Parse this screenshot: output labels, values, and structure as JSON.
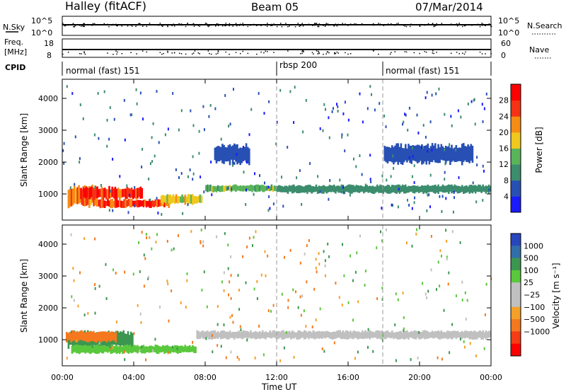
{
  "header": {
    "station": "Halley (fitACF)",
    "beam": "Beam 05",
    "date": "07/Mar/2014"
  },
  "noise_panel": {
    "left_label": "N.Sky",
    "right_label": "N.Search",
    "top_tick": "10^5",
    "bottom_tick": "10^0"
  },
  "freq_panel": {
    "left_label_top": "Freq.",
    "left_label_unit": "[MHz]",
    "left_ticks": [
      "18",
      "8"
    ],
    "right_ticks": [
      "60",
      "0"
    ],
    "right_label": "Nave"
  },
  "cpid_panel": {
    "label": "CPID",
    "segments": [
      {
        "start": "00:00",
        "name": "normal (fast) 151"
      },
      {
        "start": "12:00",
        "name": "rbsp 200"
      },
      {
        "start": "18:00",
        "name": "normal (fast) 151"
      }
    ]
  },
  "colors": {
    "power_scale": [
      "#1a1aff",
      "#2850b4",
      "#3c8c6e",
      "#5ab45a",
      "#f0c81e",
      "#f58c14",
      "#f53214",
      "#ff0000"
    ],
    "velocity_scale": [
      "#ff0000",
      "#f53c14",
      "#f5781e",
      "#f5a028",
      "#c0c0c0",
      "#c0c0c0",
      "#5ac83c",
      "#3c9650",
      "#326eaa",
      "#2846be"
    ]
  },
  "chart_data": [
    {
      "type": "heatmap",
      "title": "",
      "variable": "Power",
      "xlabel": "",
      "ylabel": "Slant Range [km]",
      "x_ticks": [
        "00:00",
        "04:00",
        "08:00",
        "12:00",
        "16:00",
        "20:00",
        "00:00"
      ],
      "xlim_hours": [
        0,
        24
      ],
      "y_ticks": [
        1000,
        2000,
        3000,
        4000
      ],
      "ylim": [
        180,
        4600
      ],
      "colorbar_label": "Power [dB]",
      "colorbar_ticks": [
        4,
        8,
        12,
        16,
        20,
        24,
        28
      ],
      "colorbar_range": [
        0,
        32
      ],
      "regions": [
        {
          "t_start": 0.3,
          "t_end": 2.0,
          "range_low": 550,
          "range_high": 1300,
          "value": 22
        },
        {
          "t_start": 1.0,
          "t_end": 4.5,
          "range_low": 800,
          "range_high": 1250,
          "value": 28
        },
        {
          "t_start": 2.0,
          "t_end": 6.0,
          "range_low": 550,
          "range_high": 850,
          "value": 26
        },
        {
          "t_start": 5.5,
          "t_end": 7.8,
          "range_low": 650,
          "range_high": 1000,
          "value": 18
        },
        {
          "t_start": 8.0,
          "t_end": 12.0,
          "range_low": 1050,
          "range_high": 1300,
          "value": 14
        },
        {
          "t_start": 12.0,
          "t_end": 24.0,
          "range_low": 1000,
          "range_high": 1300,
          "value": 10
        },
        {
          "t_start": 8.5,
          "t_end": 10.5,
          "range_low": 1900,
          "range_high": 2600,
          "value": 6
        },
        {
          "t_start": 18.0,
          "t_end": 23.0,
          "range_low": 1900,
          "range_high": 2600,
          "value": 5
        }
      ]
    },
    {
      "type": "heatmap",
      "title": "",
      "variable": "Velocity",
      "xlabel": "Time UT",
      "ylabel": "Slant Range [km]",
      "x_ticks": [
        "00:00",
        "04:00",
        "08:00",
        "12:00",
        "16:00",
        "20:00",
        "00:00"
      ],
      "xlim_hours": [
        0,
        24
      ],
      "y_ticks": [
        1000,
        2000,
        3000,
        4000
      ],
      "ylim": [
        180,
        4600
      ],
      "colorbar_label": "Velocity [m s⁻¹]",
      "colorbar_ticks": [
        "1000",
        "500",
        "100",
        "25",
        "−25",
        "−100",
        "−500",
        "−1000"
      ],
      "regions": [
        {
          "t_start": 0.3,
          "t_end": 4.0,
          "range_low": 700,
          "range_high": 1300,
          "value": 200
        },
        {
          "t_start": 0.5,
          "t_end": 7.5,
          "range_low": 550,
          "range_high": 850,
          "value": 60
        },
        {
          "t_start": 0.2,
          "t_end": 3.0,
          "range_low": 900,
          "range_high": 1300,
          "value": -300
        },
        {
          "t_start": 7.5,
          "t_end": 24.0,
          "range_low": 1000,
          "range_high": 1300,
          "value": 0
        }
      ]
    }
  ]
}
